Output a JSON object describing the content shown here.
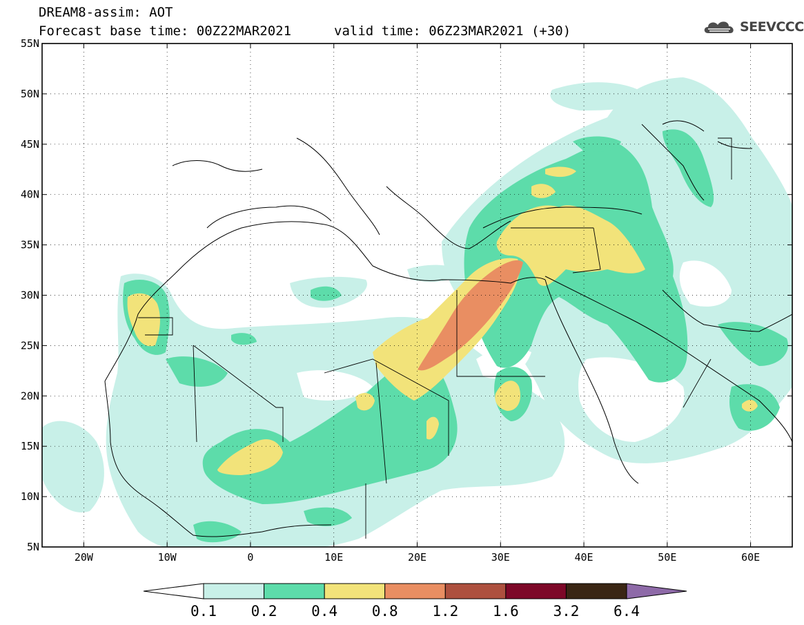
{
  "header": {
    "title": "DREAM8-assim: AOT",
    "base_time": "Forecast base time: 00Z22MAR2021",
    "valid_time": "valid time: 06Z23MAR2021 (+30)"
  },
  "brand": {
    "name": "SEEVCCC",
    "icon": "cloud-logo-icon"
  },
  "map": {
    "lon_range": [
      -25,
      65
    ],
    "lat_range": [
      5,
      55
    ],
    "lon_ticks": [
      "20W",
      "10W",
      "0",
      "10E",
      "20E",
      "30E",
      "40E",
      "50E",
      "60E"
    ],
    "lat_ticks": [
      "5N",
      "10N",
      "15N",
      "20N",
      "25N",
      "30N",
      "35N",
      "40N",
      "45N",
      "50N",
      "55N"
    ],
    "gridlines": "dotted"
  },
  "colorbar": {
    "labels": [
      "0.1",
      "0.2",
      "0.4",
      "0.8",
      "1.2",
      "1.6",
      "3.2",
      "6.4"
    ],
    "colors": [
      "#ffffff",
      "#c8f0e8",
      "#5ddcaa",
      "#f2e37a",
      "#e98e62",
      "#ad503e",
      "#7d0828",
      "#3a2614",
      "#8e6aa8"
    ]
  },
  "fill_colors": {
    "0.1": "#c8f0e8",
    "0.2": "#5ddcaa",
    "0.4": "#f2e37a",
    "0.8": "#e98e62"
  }
}
